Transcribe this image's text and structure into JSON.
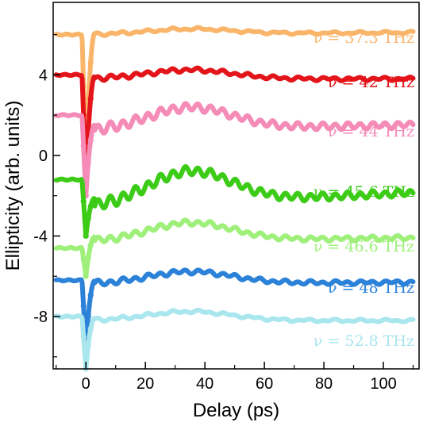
{
  "chart_data": {
    "type": "line",
    "xlabel": "Delay (ps)",
    "ylabel": "Ellipticity (arb. units)",
    "xlim": [
      -11,
      112
    ],
    "ylim": [
      -10.6,
      7.6
    ],
    "x_ticks": [
      0,
      20,
      40,
      60,
      80,
      100
    ],
    "y_ticks": [
      4,
      0,
      -4,
      -8
    ],
    "y_tick_labels": [
      "4",
      "0",
      "-4",
      "-8"
    ],
    "grid": false,
    "series": [
      {
        "name": "ν = 37.3 THz",
        "color": "#f9b56a",
        "baseline": 6.0,
        "pre_level": 6.0,
        "dip": -0.6,
        "drop": 0.55,
        "hump": 0.25,
        "osc": 0.05,
        "slope": 0.001,
        "points": [
          [
            -10,
            6.0
          ],
          [
            -2,
            6.0
          ],
          [
            0,
            5.4
          ],
          [
            2,
            5.9
          ],
          [
            10,
            6.0
          ],
          [
            20,
            6.1
          ],
          [
            35,
            6.2
          ],
          [
            50,
            6.1
          ],
          [
            70,
            6.1
          ],
          [
            90,
            6.0
          ],
          [
            110,
            6.0
          ]
        ]
      },
      {
        "name": "ν = 42 THz",
        "color": "#e3151a",
        "baseline": 3.8,
        "pre_level": 4.0,
        "dip": -1.2,
        "drop": 3.3,
        "hump": 0.45,
        "osc": 0.1,
        "slope": 0.0,
        "points": [
          [
            -10,
            4.0
          ],
          [
            -2,
            4.0
          ],
          [
            0,
            0.7
          ],
          [
            2,
            3.6
          ],
          [
            10,
            3.8
          ],
          [
            20,
            4.0
          ],
          [
            35,
            4.2
          ],
          [
            50,
            4.0
          ],
          [
            70,
            4.0
          ],
          [
            90,
            3.9
          ],
          [
            110,
            3.8
          ]
        ]
      },
      {
        "name": "ν = 44 THz",
        "color": "#f58bb7",
        "baseline": 1.2,
        "pre_level": 2.0,
        "dip": -2.0,
        "drop": 4.0,
        "hump": 1.1,
        "osc": 0.25,
        "slope": 0.003,
        "points": [
          [
            -10,
            2.0
          ],
          [
            -2,
            2.0
          ],
          [
            0,
            -2.0
          ],
          [
            3,
            1.2
          ],
          [
            10,
            1.2
          ],
          [
            20,
            1.5
          ],
          [
            35,
            2.2
          ],
          [
            50,
            1.6
          ],
          [
            70,
            1.5
          ],
          [
            90,
            1.7
          ],
          [
            110,
            1.6
          ]
        ]
      },
      {
        "name": "ν = 45.6 THz",
        "color": "#3ccc17",
        "baseline": -2.6,
        "pre_level": -1.2,
        "dip": -4.0,
        "drop": 4.0,
        "hump": 1.6,
        "osc": 0.28,
        "slope": 0.007,
        "points": [
          [
            -10,
            -1.2
          ],
          [
            -2,
            -1.2
          ],
          [
            0,
            -5.2
          ],
          [
            3,
            -2.8
          ],
          [
            10,
            -2.5
          ],
          [
            20,
            -2.0
          ],
          [
            35,
            -1.0
          ],
          [
            50,
            -1.5
          ],
          [
            70,
            -1.6
          ],
          [
            90,
            -1.4
          ],
          [
            110,
            -1.6
          ]
        ]
      },
      {
        "name": "ν = 46.6 THz",
        "color": "#9ef07b",
        "baseline": -4.3,
        "pre_level": -4.6,
        "dip": -6.0,
        "drop": 3.0,
        "hump": 0.9,
        "osc": 0.15,
        "slope": 0.002,
        "points": [
          [
            -10,
            -4.6
          ],
          [
            -2,
            -4.6
          ],
          [
            0,
            -7.6
          ],
          [
            3,
            -4.4
          ],
          [
            10,
            -4.3
          ],
          [
            20,
            -4.0
          ],
          [
            35,
            -3.5
          ],
          [
            50,
            -3.9
          ],
          [
            70,
            -3.9
          ],
          [
            90,
            -3.8
          ],
          [
            110,
            -4.0
          ]
        ]
      },
      {
        "name": "ν = 48 THz",
        "color": "#2b82d8",
        "baseline": -6.4,
        "pre_level": -6.2,
        "dip": -9.5,
        "drop": 3.5,
        "hump": 0.6,
        "osc": 0.12,
        "slope": 0.001,
        "points": [
          [
            -10,
            -6.2
          ],
          [
            -2,
            -6.2
          ],
          [
            0,
            -9.7
          ],
          [
            3,
            -6.4
          ],
          [
            10,
            -6.3
          ],
          [
            20,
            -6.1
          ],
          [
            35,
            -5.8
          ],
          [
            50,
            -6.1
          ],
          [
            70,
            -6.1
          ],
          [
            90,
            -6.0
          ],
          [
            110,
            -6.2
          ]
        ]
      },
      {
        "name": "ν = 52.8 THz",
        "color": "#a9e6ee",
        "baseline": -8.2,
        "pre_level": -8.0,
        "dip": -10.6,
        "drop": 3.0,
        "hump": 0.45,
        "osc": 0.06,
        "slope": 0.0,
        "points": [
          [
            -10,
            -8.0
          ],
          [
            -2,
            -8.0
          ],
          [
            0,
            -10.6
          ],
          [
            3,
            -8.2
          ],
          [
            10,
            -8.2
          ],
          [
            20,
            -8.0
          ],
          [
            35,
            -7.7
          ],
          [
            50,
            -8.0
          ],
          [
            70,
            -7.9
          ],
          [
            90,
            -8.0
          ],
          [
            110,
            -8.1
          ]
        ]
      }
    ]
  }
}
